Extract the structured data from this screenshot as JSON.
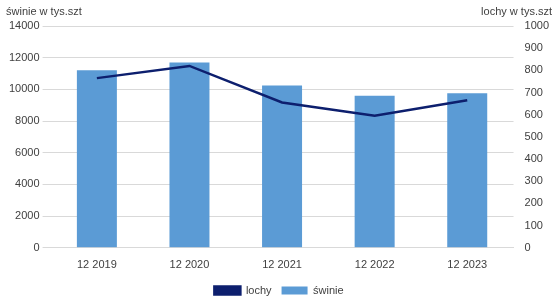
{
  "chart_data": {
    "type": "bar",
    "ylabel": "świnie w tys.szt",
    "y2label": "lochy w tys.szt",
    "categories": [
      "12 2019",
      "12 2020",
      "12 2021",
      "12 2022",
      "12 2023"
    ],
    "series": [
      {
        "name": "świnie",
        "type": "bar",
        "color": "#5b9bd5",
        "values": [
          11200,
          11700,
          10250,
          9600,
          9750
        ]
      },
      {
        "name": "lochy",
        "type": "line",
        "color": "#0d1f6e",
        "marker": "none",
        "axis": "y2",
        "values": [
          765,
          820,
          655,
          595,
          665
        ]
      }
    ],
    "ylim": [
      0,
      14000
    ],
    "yticks": [
      0,
      2000,
      4000,
      6000,
      8000,
      10000,
      12000,
      14000
    ],
    "y2lim": [
      0,
      1000
    ],
    "y2ticks": [
      0,
      100,
      200,
      300,
      400,
      500,
      600,
      700,
      800,
      900,
      1000
    ],
    "grid": true,
    "legend": "bottom"
  }
}
